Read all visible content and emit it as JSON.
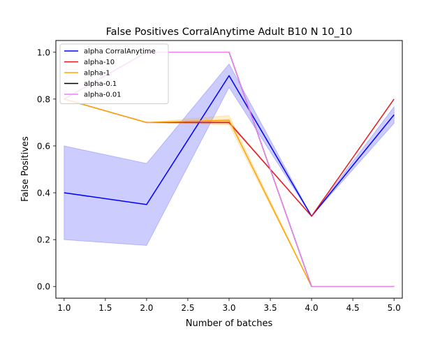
{
  "chart_data": {
    "type": "line",
    "title": "False Positives CorralAnytime Adult B10 N 10_10",
    "xlabel": "Number of batches",
    "ylabel": "False Positives",
    "x": [
      1.0,
      2.0,
      3.0,
      4.0,
      5.0
    ],
    "xlim": [
      0.9,
      5.1
    ],
    "ylim": [
      -0.05,
      1.05
    ],
    "xticks": [
      "1.0",
      "1.5",
      "2.0",
      "2.5",
      "3.0",
      "3.5",
      "4.0",
      "4.5",
      "5.0"
    ],
    "yticks": [
      "0.0",
      "0.2",
      "0.4",
      "0.6",
      "0.8",
      "1.0"
    ],
    "grid": false,
    "legend_position": "top-left",
    "series": [
      {
        "name": "alpha CorralAnytime",
        "color": "#0000ff",
        "values": [
          0.4,
          0.35,
          0.9,
          0.3,
          0.733
        ],
        "band_lower": [
          0.2,
          0.175,
          0.85,
          0.3,
          0.697
        ],
        "band_upper": [
          0.6,
          0.525,
          0.95,
          0.3,
          0.767
        ]
      },
      {
        "name": "alpha-10",
        "color": "#e41a1c",
        "values": [
          0.8,
          0.7,
          0.7,
          0.3,
          0.8
        ],
        "band_lower": [
          0.8,
          0.7,
          0.695,
          0.3,
          0.8
        ],
        "band_upper": [
          0.8,
          0.7,
          0.705,
          0.3,
          0.8
        ]
      },
      {
        "name": "alpha-1",
        "color": "#ffa500",
        "values": [
          0.8,
          0.7,
          0.71,
          0.0,
          0.0
        ],
        "band_lower": [
          0.8,
          0.7,
          0.69,
          0.0,
          0.0
        ],
        "band_upper": [
          0.8,
          0.7,
          0.73,
          0.0,
          0.0
        ]
      },
      {
        "name": "alpha-0.1",
        "color": "#000000",
        "values": [
          0.8,
          1.0,
          1.0,
          0.0,
          0.0
        ],
        "band_lower": [
          0.8,
          1.0,
          1.0,
          0.0,
          0.0
        ],
        "band_upper": [
          0.8,
          1.0,
          1.0,
          0.0,
          0.0
        ]
      },
      {
        "name": "alpha-0.01",
        "color": "#ee82ee",
        "values": [
          0.8,
          1.0,
          1.0,
          0.0,
          0.0
        ],
        "band_lower": [
          0.8,
          1.0,
          1.0,
          0.0,
          0.0
        ],
        "band_upper": [
          0.8,
          1.0,
          1.0,
          0.0,
          0.0
        ]
      }
    ]
  }
}
